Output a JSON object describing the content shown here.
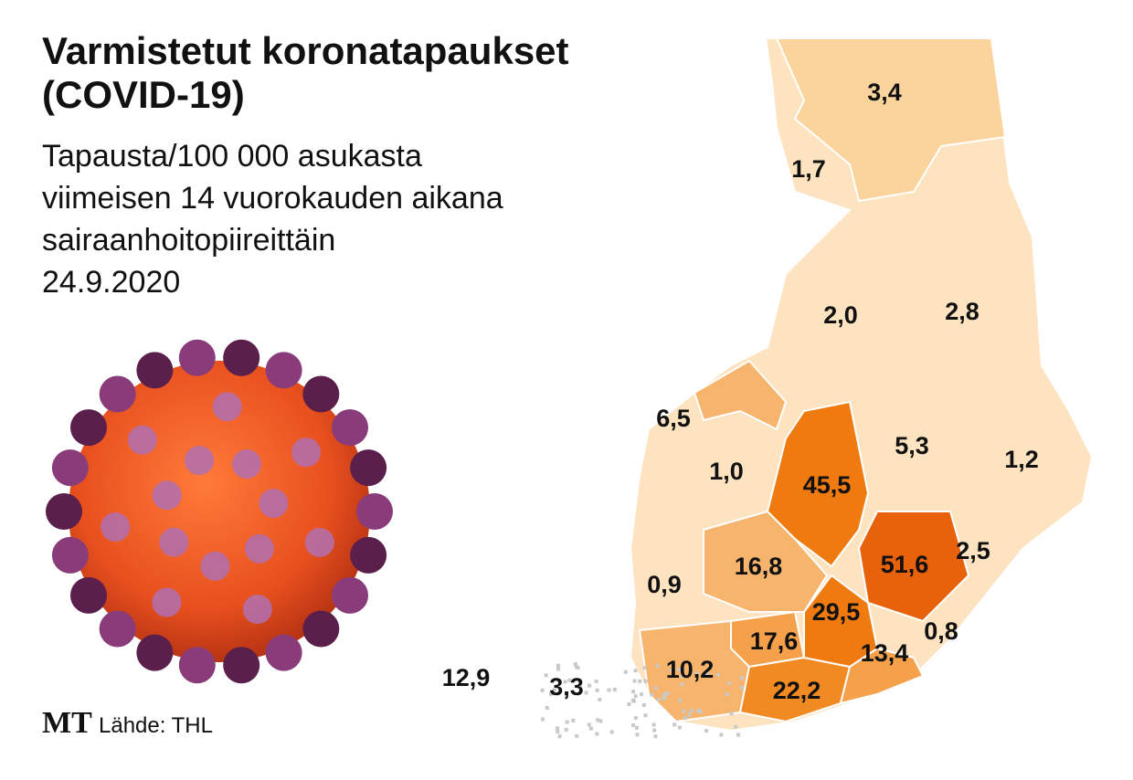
{
  "header": {
    "title_lines": [
      "Varmistetut koronatapaukset",
      "(COVID-19)"
    ],
    "subtitle_lines": [
      "Tapausta/100 000 asukasta",
      "viimeisen 14 vuorokauden aikana",
      "sairaanhoitopiireittäin"
    ],
    "date": "24.9.2020"
  },
  "map": {
    "region_labels": [
      "3,4",
      "1,7",
      "2,0",
      "2,8",
      "6,5",
      "5,3",
      "1,2",
      "1,0",
      "45,5",
      "16,8",
      "51,6",
      "2,5",
      "0,9",
      "29,5",
      "0,8",
      "17,6",
      "13,4",
      "10,2",
      "22,2",
      "12,9",
      "3,3"
    ]
  },
  "footer": {
    "logo": "MT",
    "source": "Lähde: THL"
  }
}
